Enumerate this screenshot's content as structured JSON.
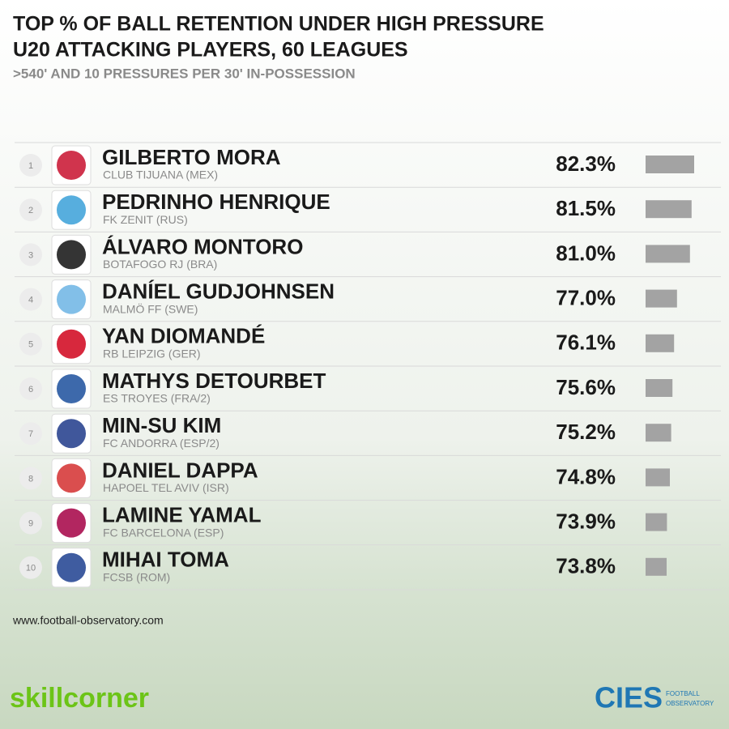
{
  "chart_data": {
    "type": "bar",
    "title_lines": [
      "TOP % OF BALL RETENTION UNDER HIGH PRESSURE",
      "U20 ATTACKING PLAYERS, 60 LEAGUES"
    ],
    "subtitle": ">540' AND 10 PRESSURES PER 30' IN-POSSESSION",
    "ranks": [
      1,
      2,
      3,
      4,
      5,
      6,
      7,
      8,
      9,
      10
    ],
    "categories": [
      "GILBERTO MORA",
      "PEDRINHO HENRIQUE",
      "ÁLVARO MONTORO",
      "DANÍEL GUDJOHNSEN",
      "YAN DIOMANDÉ",
      "MATHYS DETOURBET",
      "MIN-SU KIM",
      "DANIEL DAPPA",
      "LAMINE YAMAL",
      "MIHAI TOMA"
    ],
    "clubs": [
      "CLUB TIJUANA (MEX)",
      "FK ZENIT (RUS)",
      "BOTAFOGO RJ (BRA)",
      "MALMÖ FF (SWE)",
      "RB LEIPZIG (GER)",
      "ES TROYES (FRA/2)",
      "FC ANDORRA (ESP/2)",
      "HAPOEL TEL AVIV (ISR)",
      "FC BARCELONA (ESP)",
      "FCSB (ROM)"
    ],
    "values": [
      82.3,
      81.5,
      81.0,
      77.0,
      76.1,
      75.6,
      75.2,
      74.8,
      73.9,
      73.8
    ],
    "value_labels": [
      "82.3%",
      "81.5%",
      "81.0%",
      "77.0%",
      "76.1%",
      "75.6%",
      "75.2%",
      "74.8%",
      "73.9%",
      "73.8%"
    ],
    "color": "#a3a3a3"
  },
  "footer": {
    "source": "www.football-observatory.com",
    "left_logo": "skillcorner",
    "right_logo": "CIES",
    "right_logo_caption": [
      "FOOTBALL",
      "OBSERVATORY"
    ]
  }
}
